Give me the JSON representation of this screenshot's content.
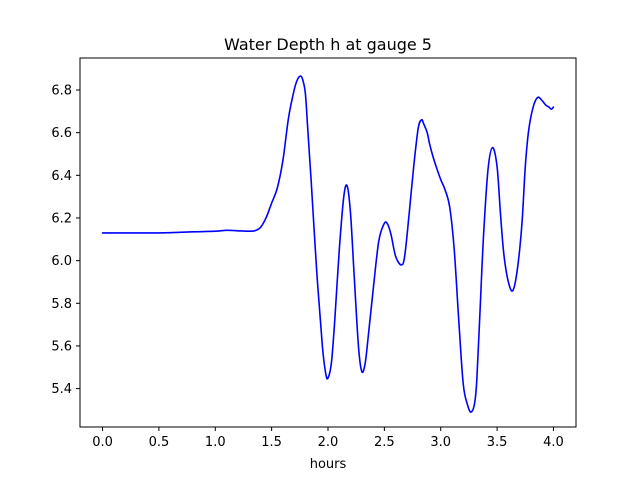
{
  "chart_data": {
    "type": "line",
    "title": "Water Depth h at gauge 5",
    "xlabel": "hours",
    "ylabel": "",
    "xlim": [
      -0.2,
      4.2
    ],
    "ylim": [
      5.22,
      6.95
    ],
    "xticks": [
      0.0,
      0.5,
      1.0,
      1.5,
      2.0,
      2.5,
      3.0,
      3.5,
      4.0
    ],
    "xtick_labels": [
      "0.0",
      "0.5",
      "1.0",
      "1.5",
      "2.0",
      "2.5",
      "3.0",
      "3.5",
      "4.0"
    ],
    "yticks": [
      5.4,
      5.6,
      5.8,
      6.0,
      6.2,
      6.4,
      6.6,
      6.8
    ],
    "ytick_labels": [
      "5.4",
      "5.6",
      "5.8",
      "6.0",
      "6.2",
      "6.4",
      "6.6",
      "6.8"
    ],
    "grid": false,
    "series": [
      {
        "color": "#0000ff",
        "x": [
          0.0,
          0.5,
          0.8,
          1.0,
          1.1,
          1.2,
          1.3,
          1.35,
          1.4,
          1.45,
          1.5,
          1.55,
          1.6,
          1.65,
          1.7,
          1.73,
          1.76,
          1.78,
          1.8,
          1.82,
          1.85,
          1.9,
          1.95,
          1.98,
          2.0,
          2.03,
          2.06,
          2.1,
          2.14,
          2.17,
          2.2,
          2.23,
          2.27,
          2.3,
          2.33,
          2.36,
          2.4,
          2.45,
          2.5,
          2.53,
          2.56,
          2.6,
          2.65,
          2.68,
          2.72,
          2.76,
          2.8,
          2.83,
          2.85,
          2.88,
          2.9,
          2.93,
          2.96,
          3.0,
          3.04,
          3.08,
          3.12,
          3.16,
          3.2,
          3.24,
          3.27,
          3.3,
          3.32,
          3.35,
          3.38,
          3.42,
          3.46,
          3.5,
          3.53,
          3.56,
          3.6,
          3.64,
          3.68,
          3.72,
          3.75,
          3.78,
          3.82,
          3.86,
          3.9,
          3.93,
          3.96,
          3.98,
          4.0
        ],
        "y": [
          6.13,
          6.13,
          6.135,
          6.138,
          6.142,
          6.14,
          6.138,
          6.14,
          6.155,
          6.2,
          6.27,
          6.34,
          6.47,
          6.67,
          6.8,
          6.85,
          6.865,
          6.84,
          6.78,
          6.62,
          6.38,
          5.95,
          5.6,
          5.47,
          5.45,
          5.52,
          5.72,
          6.05,
          6.3,
          6.35,
          6.22,
          5.95,
          5.6,
          5.48,
          5.52,
          5.66,
          5.86,
          6.09,
          6.175,
          6.17,
          6.12,
          6.02,
          5.98,
          6.02,
          6.22,
          6.44,
          6.62,
          6.66,
          6.64,
          6.6,
          6.55,
          6.49,
          6.44,
          6.38,
          6.33,
          6.25,
          6.05,
          5.72,
          5.42,
          5.32,
          5.29,
          5.33,
          5.44,
          5.78,
          6.12,
          6.43,
          6.53,
          6.44,
          6.22,
          6.03,
          5.9,
          5.86,
          5.96,
          6.17,
          6.44,
          6.61,
          6.72,
          6.765,
          6.75,
          6.73,
          6.72,
          6.71,
          6.72
        ]
      }
    ]
  }
}
